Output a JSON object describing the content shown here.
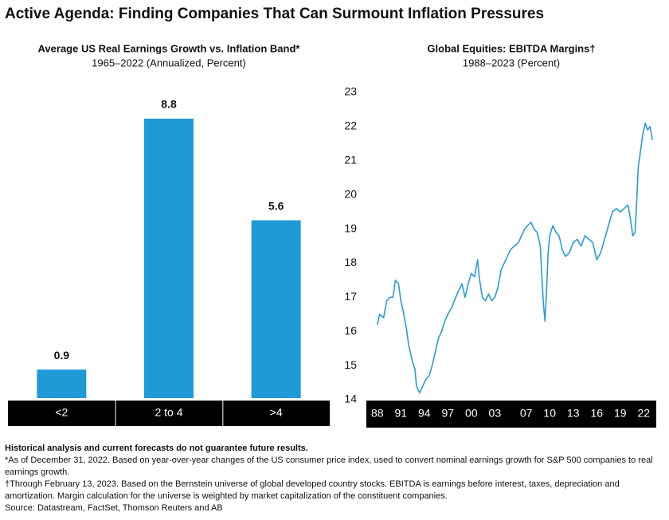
{
  "title": "Active Agenda: Finding Companies That Can Surmount Inflation Pressures",
  "chart_data": [
    {
      "type": "bar",
      "title": "Average US Real Earnings Growth vs. Inflation Band*",
      "subtitle": "1965–2022 (Annualized, Percent)",
      "categories": [
        "<2",
        "2 to 4",
        ">4"
      ],
      "values": [
        0.9,
        8.8,
        5.6
      ],
      "color": "#1f9ad6"
    },
    {
      "type": "line",
      "title": "Global Equities: EBITDA Margins†",
      "subtitle": "1988–2023 (Percent)",
      "color": "#2b9bd6",
      "x": [
        1988.0,
        1988.3,
        1988.8,
        1989.2,
        1989.6,
        1990.0,
        1990.3,
        1990.7,
        1991.0,
        1991.3,
        1991.7,
        1992.0,
        1992.5,
        1992.8,
        1993.0,
        1993.4,
        1993.8,
        1994.2,
        1994.6,
        1995.0,
        1995.4,
        1995.8,
        1996.2,
        1996.6,
        1997.0,
        1997.5,
        1998.0,
        1998.4,
        1998.8,
        1999.2,
        1999.6,
        2000.0,
        2000.4,
        2000.8,
        2001.0,
        2001.4,
        2001.8,
        2002.2,
        2002.6,
        2003.0,
        2003.4,
        2003.8,
        2004.2,
        2004.6,
        2005.0,
        2005.5,
        2006.0,
        2006.4,
        2006.8,
        2007.2,
        2007.6,
        2008.0,
        2008.4,
        2008.8,
        2009.0,
        2009.2,
        2009.4,
        2009.6,
        2009.8,
        2010.0,
        2010.4,
        2010.8,
        2011.2,
        2011.6,
        2012.0,
        2012.5,
        2013.0,
        2013.5,
        2014.0,
        2014.5,
        2015.0,
        2015.5,
        2016.0,
        2016.5,
        2017.0,
        2017.5,
        2018.0,
        2018.5,
        2019.0,
        2019.5,
        2020.0,
        2020.3,
        2020.6,
        2020.9,
        2021.1,
        2021.3,
        2021.6,
        2021.9,
        2022.2,
        2022.5,
        2022.8,
        2023.1
      ],
      "values": [
        16.2,
        16.5,
        16.4,
        16.9,
        17.0,
        17.0,
        17.5,
        17.4,
        16.9,
        16.6,
        16.1,
        15.6,
        15.1,
        14.9,
        14.4,
        14.2,
        14.4,
        14.6,
        14.7,
        15.0,
        15.4,
        15.8,
        16.0,
        16.3,
        16.5,
        16.7,
        17.0,
        17.2,
        17.4,
        17.0,
        17.4,
        17.7,
        17.6,
        18.1,
        17.6,
        17.0,
        16.9,
        17.1,
        16.9,
        17.0,
        17.3,
        17.8,
        18.0,
        18.2,
        18.4,
        18.5,
        18.6,
        18.8,
        19.0,
        19.1,
        19.2,
        19.0,
        18.9,
        18.5,
        17.6,
        16.8,
        16.3,
        17.2,
        18.3,
        18.8,
        19.1,
        18.9,
        18.8,
        18.4,
        18.2,
        18.3,
        18.6,
        18.7,
        18.5,
        18.8,
        18.7,
        18.6,
        18.1,
        18.3,
        18.7,
        19.1,
        19.5,
        19.6,
        19.5,
        19.6,
        19.7,
        19.3,
        18.8,
        18.9,
        19.8,
        20.8,
        21.3,
        21.8,
        22.1,
        21.9,
        22.0,
        21.6
      ],
      "xlim": [
        1986.6,
        2023.6
      ],
      "xticks": [
        {
          "value": 1988,
          "label": "88"
        },
        {
          "value": 1991,
          "label": "91"
        },
        {
          "value": 1994,
          "label": "94"
        },
        {
          "value": 1997,
          "label": "97"
        },
        {
          "value": 2000,
          "label": "00"
        },
        {
          "value": 2003,
          "label": "03"
        },
        {
          "value": 2007,
          "label": "07"
        },
        {
          "value": 2010,
          "label": "10"
        },
        {
          "value": 2013,
          "label": "13"
        },
        {
          "value": 2016,
          "label": "16"
        },
        {
          "value": 2019,
          "label": "19"
        },
        {
          "value": 2022,
          "label": "22"
        }
      ],
      "ylim": [
        14,
        23
      ],
      "yticks": [
        14,
        15,
        16,
        17,
        18,
        19,
        20,
        21,
        22,
        23
      ]
    }
  ],
  "footnotes": [
    "Historical analysis and current forecasts do not guarantee future results.",
    "*As of December 31, 2022. Based on year-over-year changes of the US consumer price index, used to convert nominal earnings growth for S&P 500 companies to real earnings growth.",
    "†Through February 13, 2023. Based on the Bernstein universe of global developed country stocks. EBITDA is earnings before interest, taxes, depreciation and amortization. Margin calculation for the universe is weighted by market capitalization of the constituent companies.",
    "Source: Datastream, FactSet, Thomson Reuters and AB"
  ]
}
